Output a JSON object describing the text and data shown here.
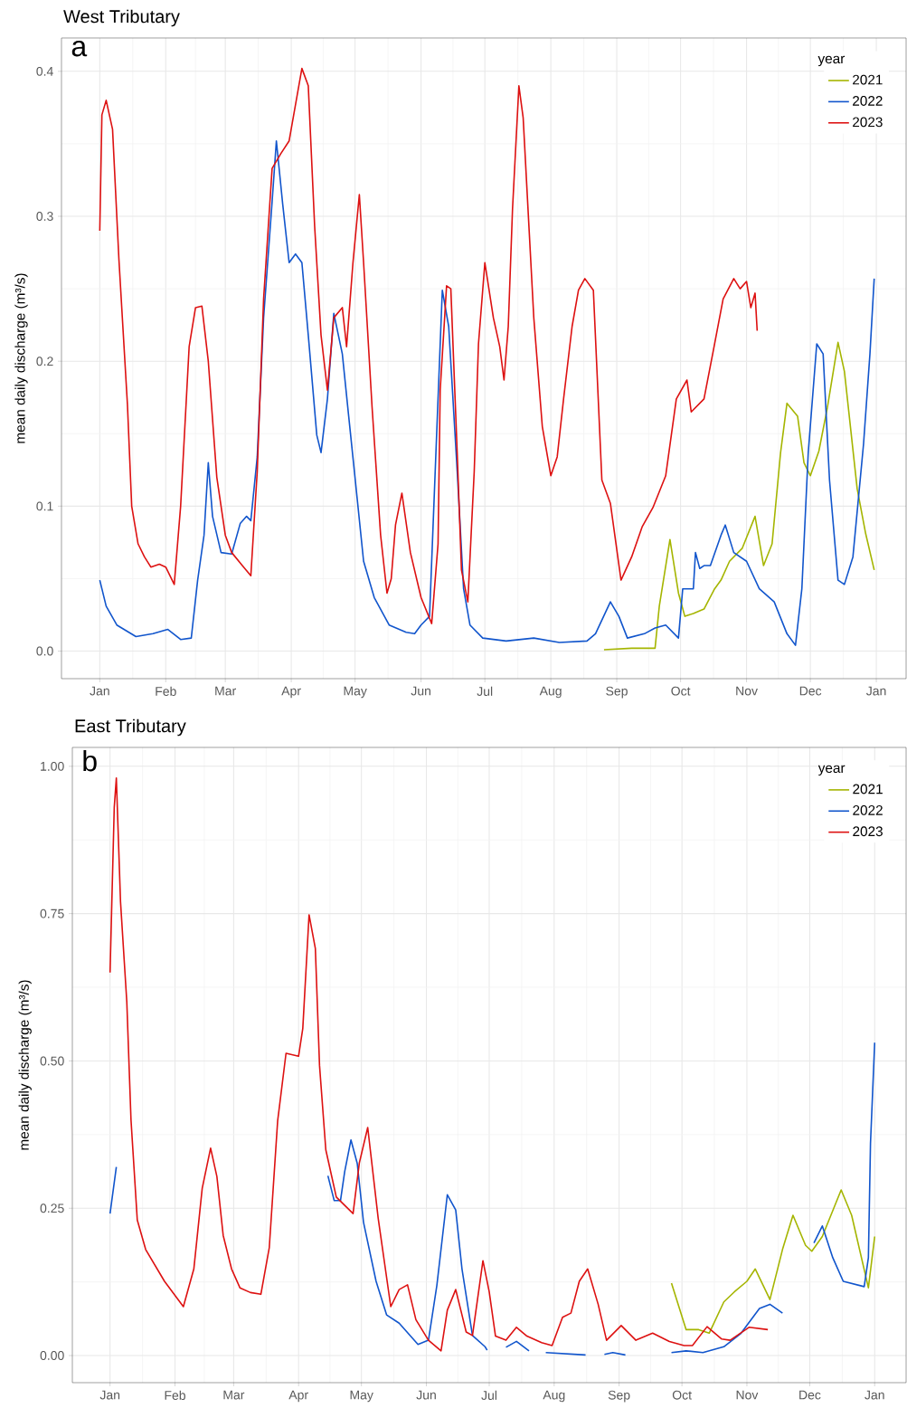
{
  "chart_data": [
    {
      "type": "line",
      "title": "West Tributary",
      "annotations": [
        "a"
      ],
      "ylabel": "mean daily discharge (m³/s)",
      "legend_title": "year",
      "legend": "top right",
      "grid": true,
      "xlim": [
        "2020-12-14",
        "2022-01-15"
      ],
      "xticks": [
        {
          "value": "2021-01-01",
          "label": "Jan"
        },
        {
          "value": "2021-02-01",
          "label": "Feb"
        },
        {
          "value": "2021-03-01",
          "label": "Mar"
        },
        {
          "value": "2021-04-01",
          "label": "Apr"
        },
        {
          "value": "2021-05-01",
          "label": "May"
        },
        {
          "value": "2021-06-01",
          "label": "Jun"
        },
        {
          "value": "2021-07-01",
          "label": "Jul"
        },
        {
          "value": "2021-08-01",
          "label": "Aug"
        },
        {
          "value": "2021-09-01",
          "label": "Sep"
        },
        {
          "value": "2021-10-01",
          "label": "Oct"
        },
        {
          "value": "2021-11-01",
          "label": "Nov"
        },
        {
          "value": "2021-12-01",
          "label": "Dec"
        },
        {
          "value": "2022-01-01",
          "label": "Jan"
        }
      ],
      "ylim": [
        -0.019,
        0.423
      ],
      "yticks": [
        {
          "value": 0,
          "label": "0.0"
        },
        {
          "value": 0.1,
          "label": "0.1"
        },
        {
          "value": 0.2,
          "label": "0.2"
        },
        {
          "value": 0.3,
          "label": "0.3"
        },
        {
          "value": 0.4,
          "label": "0.4"
        }
      ],
      "series": [
        {
          "name": "2021",
          "color": "#a5b500",
          "x": [
            "2021-08-26",
            "2021-09-08",
            "2021-09-19",
            "2021-09-21",
            "2021-09-26",
            "2021-09-30",
            "2021-10-03",
            "2021-10-07",
            "2021-10-12",
            "2021-10-17",
            "2021-10-20",
            "2021-10-24",
            "2021-10-30",
            "2021-11-05",
            "2021-11-09",
            "2021-11-13",
            "2021-11-17",
            "2021-11-20",
            "2021-11-25",
            "2021-11-28",
            "2021-12-01",
            "2021-12-05",
            "2021-12-09",
            "2021-12-14",
            "2021-12-17",
            "2021-12-23",
            "2021-12-27",
            "2021-12-31"
          ],
          "values": [
            0.001,
            0.002,
            0.002,
            0.031,
            0.077,
            0.04,
            0.024,
            0.026,
            0.029,
            0.043,
            0.049,
            0.062,
            0.071,
            0.093,
            0.059,
            0.074,
            0.137,
            0.171,
            0.162,
            0.13,
            0.121,
            0.138,
            0.168,
            0.213,
            0.193,
            0.112,
            0.081,
            0.056
          ]
        },
        {
          "name": "2022",
          "color": "#1155cc",
          "x": [
            "2021-01-01",
            "2021-01-04",
            "2021-01-09",
            "2021-01-18",
            "2021-01-26",
            "2021-02-02",
            "2021-02-08",
            "2021-02-13",
            "2021-02-16",
            "2021-02-19",
            "2021-02-21",
            "2021-02-23",
            "2021-02-27",
            "2021-03-04",
            "2021-03-08",
            "2021-03-11",
            "2021-03-13",
            "2021-03-16",
            "2021-03-19",
            "2021-03-23",
            "2021-03-25",
            "2021-03-28",
            "2021-03-31",
            "2021-04-03",
            "2021-04-06",
            "2021-04-09",
            "2021-04-13",
            "2021-04-15",
            "2021-04-18",
            "2021-04-21",
            "2021-04-25",
            "2021-04-28",
            "2021-05-02",
            "2021-05-05",
            "2021-05-10",
            "2021-05-17",
            "2021-05-25",
            "2021-05-29",
            "2021-06-01",
            "2021-06-05",
            "2021-06-08",
            "2021-06-11",
            "2021-06-14",
            "2021-06-18",
            "2021-06-21",
            "2021-06-24",
            "2021-06-30",
            "2021-07-11",
            "2021-07-24",
            "2021-08-05",
            "2021-08-18",
            "2021-08-22",
            "2021-08-29",
            "2021-09-02",
            "2021-09-06",
            "2021-09-14",
            "2021-09-19",
            "2021-09-24",
            "2021-09-30",
            "2021-10-02",
            "2021-10-07",
            "2021-10-08",
            "2021-10-10",
            "2021-10-12",
            "2021-10-15",
            "2021-10-20",
            "2021-10-22",
            "2021-10-26",
            "2021-11-01",
            "2021-11-07",
            "2021-11-14",
            "2021-11-20",
            "2021-11-24",
            "2021-11-27",
            "2021-11-30",
            "2021-12-04",
            "2021-12-07",
            "2021-12-10",
            "2021-12-14",
            "2021-12-17",
            "2021-12-21",
            "2021-12-26",
            "2021-12-29",
            "2021-12-31"
          ],
          "values": [
            0.049,
            0.031,
            0.018,
            0.01,
            0.012,
            0.015,
            0.008,
            0.009,
            0.049,
            0.08,
            0.13,
            0.093,
            0.068,
            0.067,
            0.088,
            0.093,
            0.09,
            0.134,
            0.23,
            0.31,
            0.352,
            0.308,
            0.268,
            0.274,
            0.268,
            0.218,
            0.149,
            0.137,
            0.174,
            0.233,
            0.205,
            0.162,
            0.105,
            0.062,
            0.037,
            0.018,
            0.013,
            0.012,
            0.018,
            0.024,
            0.137,
            0.249,
            0.224,
            0.124,
            0.043,
            0.018,
            0.009,
            0.007,
            0.009,
            0.006,
            0.007,
            0.012,
            0.034,
            0.024,
            0.009,
            0.012,
            0.016,
            0.018,
            0.009,
            0.043,
            0.043,
            0.068,
            0.057,
            0.059,
            0.059,
            0.08,
            0.087,
            0.068,
            0.062,
            0.043,
            0.034,
            0.012,
            0.004,
            0.043,
            0.137,
            0.212,
            0.205,
            0.118,
            0.049,
            0.046,
            0.065,
            0.143,
            0.205,
            0.257
          ]
        },
        {
          "name": "2023",
          "color": "#dd1111",
          "x": [
            "2021-01-01",
            "2021-01-02",
            "2021-01-04",
            "2021-01-07",
            "2021-01-10",
            "2021-01-14",
            "2021-01-16",
            "2021-01-19",
            "2021-01-22",
            "2021-01-25",
            "2021-01-29",
            "2021-02-01",
            "2021-02-05",
            "2021-02-08",
            "2021-02-12",
            "2021-02-15",
            "2021-02-18",
            "2021-02-21",
            "2021-02-25",
            "2021-03-01",
            "2021-03-04",
            "2021-03-09",
            "2021-03-13",
            "2021-03-16",
            "2021-03-19",
            "2021-03-23",
            "2021-03-27",
            "2021-03-31",
            "2021-04-03",
            "2021-04-06",
            "2021-04-09",
            "2021-04-12",
            "2021-04-15",
            "2021-04-18",
            "2021-04-21",
            "2021-04-25",
            "2021-04-27",
            "2021-04-30",
            "2021-05-03",
            "2021-05-05",
            "2021-05-09",
            "2021-05-13",
            "2021-05-16",
            "2021-05-18",
            "2021-05-20",
            "2021-05-23",
            "2021-05-27",
            "2021-06-01",
            "2021-06-06",
            "2021-06-09",
            "2021-06-10",
            "2021-06-13",
            "2021-06-15",
            "2021-06-18",
            "2021-06-20",
            "2021-06-23",
            "2021-06-26",
            "2021-06-28",
            "2021-07-01",
            "2021-07-05",
            "2021-07-08",
            "2021-07-10",
            "2021-07-12",
            "2021-07-14",
            "2021-07-17",
            "2021-07-19",
            "2021-07-24",
            "2021-07-28",
            "2021-08-01",
            "2021-08-04",
            "2021-08-07",
            "2021-08-11",
            "2021-08-14",
            "2021-08-17",
            "2021-08-21",
            "2021-08-25",
            "2021-08-29",
            "2021-09-03",
            "2021-09-08",
            "2021-09-13",
            "2021-09-18",
            "2021-09-24",
            "2021-09-29",
            "2021-10-04",
            "2021-10-06",
            "2021-10-12",
            "2021-10-17",
            "2021-10-21",
            "2021-10-26",
            "2021-10-29",
            "2021-11-01",
            "2021-11-03",
            "2021-11-05",
            "2021-11-06"
          ],
          "values": [
            0.29,
            0.37,
            0.38,
            0.36,
            0.27,
            0.17,
            0.1,
            0.074,
            0.065,
            0.058,
            0.06,
            0.058,
            0.046,
            0.1,
            0.21,
            0.237,
            0.238,
            0.2,
            0.12,
            0.08,
            0.068,
            0.059,
            0.052,
            0.124,
            0.243,
            0.333,
            0.343,
            0.352,
            0.377,
            0.402,
            0.39,
            0.293,
            0.218,
            0.18,
            0.23,
            0.237,
            0.21,
            0.268,
            0.315,
            0.268,
            0.168,
            0.08,
            0.04,
            0.05,
            0.087,
            0.109,
            0.068,
            0.037,
            0.019,
            0.074,
            0.18,
            0.252,
            0.25,
            0.137,
            0.056,
            0.034,
            0.124,
            0.212,
            0.268,
            0.23,
            0.21,
            0.187,
            0.224,
            0.305,
            0.39,
            0.368,
            0.23,
            0.155,
            0.121,
            0.134,
            0.174,
            0.224,
            0.249,
            0.257,
            0.249,
            0.118,
            0.102,
            0.049,
            0.065,
            0.086,
            0.099,
            0.121,
            0.174,
            0.187,
            0.165,
            0.174,
            0.212,
            0.243,
            0.257,
            0.25,
            0.255,
            0.237,
            0.247,
            0.221
          ]
        }
      ]
    },
    {
      "type": "line",
      "title": "East Tributary",
      "annotations": [
        "b"
      ],
      "ylabel": "mean daily discharge (m³/s)",
      "legend_title": "year",
      "legend": "top right",
      "grid": true,
      "xlim": [
        "2020-12-14",
        "2022-01-16"
      ],
      "xticks": [
        {
          "value": "2021-01-01",
          "label": "Jan"
        },
        {
          "value": "2021-02-01",
          "label": "Feb"
        },
        {
          "value": "2021-03-01",
          "label": "Mar"
        },
        {
          "value": "2021-04-01",
          "label": "Apr"
        },
        {
          "value": "2021-05-01",
          "label": "May"
        },
        {
          "value": "2021-06-01",
          "label": "Jun"
        },
        {
          "value": "2021-07-01",
          "label": "Jul"
        },
        {
          "value": "2021-08-01",
          "label": "Aug"
        },
        {
          "value": "2021-09-01",
          "label": "Sep"
        },
        {
          "value": "2021-10-01",
          "label": "Oct"
        },
        {
          "value": "2021-11-01",
          "label": "Nov"
        },
        {
          "value": "2021-12-01",
          "label": "Dec"
        },
        {
          "value": "2022-01-01",
          "label": "Jan"
        }
      ],
      "ylim": [
        -0.046,
        1.032
      ],
      "yticks": [
        {
          "value": 0,
          "label": "0.00"
        },
        {
          "value": 0.25,
          "label": "0.25"
        },
        {
          "value": 0.5,
          "label": "0.50"
        },
        {
          "value": 0.75,
          "label": "0.75"
        },
        {
          "value": 1,
          "label": "1.00"
        }
      ],
      "series": [
        {
          "name": "2021",
          "color": "#a5b500",
          "x": [
            "2021-09-26",
            "2021-10-03",
            "2021-10-09",
            "2021-10-14",
            "2021-10-21",
            "2021-10-26",
            "2021-11-01",
            "2021-11-05",
            "2021-11-12",
            "2021-11-18",
            "2021-11-23",
            "2021-11-29",
            "2021-12-02",
            "2021-12-07",
            "2021-12-16",
            "2021-12-21",
            "2021-12-29",
            "2022-01-01"
          ],
          "values": [
            0.123,
            0.044,
            0.044,
            0.038,
            0.091,
            0.108,
            0.126,
            0.147,
            0.095,
            0.18,
            0.238,
            0.187,
            0.177,
            0.202,
            0.281,
            0.238,
            0.115,
            0.202
          ]
        },
        {
          "name": "2022",
          "color": "#1155cc",
          "x": [
            "2021-01-01",
            "2021-01-04",
            "2021-02-19",
            "2021-04-15",
            "2021-04-18",
            "2021-04-21",
            "2021-04-23",
            "2021-04-26",
            "2021-04-29",
            "2021-05-02",
            "2021-05-08",
            "2021-05-13",
            "2021-05-19",
            "2021-05-28",
            "2021-06-02",
            "2021-06-06",
            "2021-06-11",
            "2021-06-15",
            "2021-06-18",
            "2021-06-23",
            "2021-06-29",
            "2021-06-30",
            "2021-07-04",
            "2021-07-09",
            "2021-07-14",
            "2021-07-20",
            "2021-07-24",
            "2021-07-28",
            "2021-08-16",
            "2021-08-20",
            "2021-08-25",
            "2021-08-29",
            "2021-09-04",
            "2021-09-15",
            "2021-09-26",
            "2021-10-03",
            "2021-10-11",
            "2021-10-21",
            "2021-10-29",
            "2021-11-07",
            "2021-11-12",
            "2021-11-18",
            "2021-11-26",
            "2021-12-03",
            "2021-12-07",
            "2021-12-12",
            "2021-12-17",
            "2021-12-27",
            "2021-12-29",
            "2021-12-30",
            "2022-01-01"
          ],
          "values": [
            0.241,
            0.32,
            null,
            0.305,
            0.263,
            0.263,
            0.312,
            0.366,
            0.326,
            0.226,
            0.126,
            0.069,
            0.055,
            0.019,
            0.026,
            0.119,
            0.273,
            0.247,
            0.147,
            0.034,
            0.015,
            0.009,
            null,
            0.014,
            0.024,
            0.008,
            null,
            0.005,
            0.001,
            null,
            0.002,
            0.005,
            0.001,
            null,
            0.005,
            0.008,
            0.005,
            0.015,
            0.037,
            0.08,
            0.087,
            0.072,
            null,
            0.191,
            0.22,
            0.166,
            0.126,
            0.117,
            0.166,
            0.36,
            0.531
          ]
        },
        {
          "name": "2023",
          "color": "#dd1111",
          "x": [
            "2021-01-01",
            "2021-01-03",
            "2021-01-04",
            "2021-01-06",
            "2021-01-09",
            "2021-01-11",
            "2021-01-14",
            "2021-01-18",
            "2021-01-27",
            "2021-02-05",
            "2021-02-10",
            "2021-02-14",
            "2021-02-18",
            "2021-02-21",
            "2021-02-24",
            "2021-02-28",
            "2021-03-04",
            "2021-03-09",
            "2021-03-14",
            "2021-03-18",
            "2021-03-22",
            "2021-03-26",
            "2021-04-01",
            "2021-04-03",
            "2021-04-06",
            "2021-04-09",
            "2021-04-11",
            "2021-04-14",
            "2021-04-19",
            "2021-04-27",
            "2021-04-30",
            "2021-05-04",
            "2021-05-09",
            "2021-05-15",
            "2021-05-19",
            "2021-05-23",
            "2021-05-27",
            "2021-06-02",
            "2021-06-08",
            "2021-06-11",
            "2021-06-15",
            "2021-06-20",
            "2021-06-23",
            "2021-06-28",
            "2021-07-01",
            "2021-07-04",
            "2021-07-09",
            "2021-07-14",
            "2021-07-19",
            "2021-07-26",
            "2021-07-31",
            "2021-08-05",
            "2021-08-09",
            "2021-08-13",
            "2021-08-17",
            "2021-08-22",
            "2021-08-26",
            "2021-09-02",
            "2021-09-09",
            "2021-09-17",
            "2021-09-25",
            "2021-10-02",
            "2021-10-06",
            "2021-10-13",
            "2021-10-20",
            "2021-10-24",
            "2021-11-02",
            "2021-11-11"
          ],
          "values": [
            0.65,
            0.93,
            0.98,
            0.77,
            0.6,
            0.4,
            0.23,
            0.18,
            0.126,
            0.083,
            0.147,
            0.284,
            0.352,
            0.304,
            0.204,
            0.147,
            0.115,
            0.107,
            0.104,
            0.183,
            0.398,
            0.513,
            0.508,
            0.555,
            0.748,
            0.691,
            0.492,
            0.349,
            0.269,
            0.241,
            0.327,
            0.387,
            0.233,
            0.083,
            0.112,
            0.12,
            0.061,
            0.026,
            0.008,
            0.077,
            0.112,
            0.04,
            0.034,
            0.161,
            0.108,
            0.033,
            0.026,
            0.048,
            0.033,
            0.022,
            0.017,
            0.065,
            0.072,
            0.126,
            0.147,
            0.087,
            0.026,
            0.051,
            0.026,
            0.038,
            0.024,
            0.017,
            0.017,
            0.049,
            0.028,
            0.026,
            0.048,
            0.044
          ]
        }
      ]
    }
  ]
}
